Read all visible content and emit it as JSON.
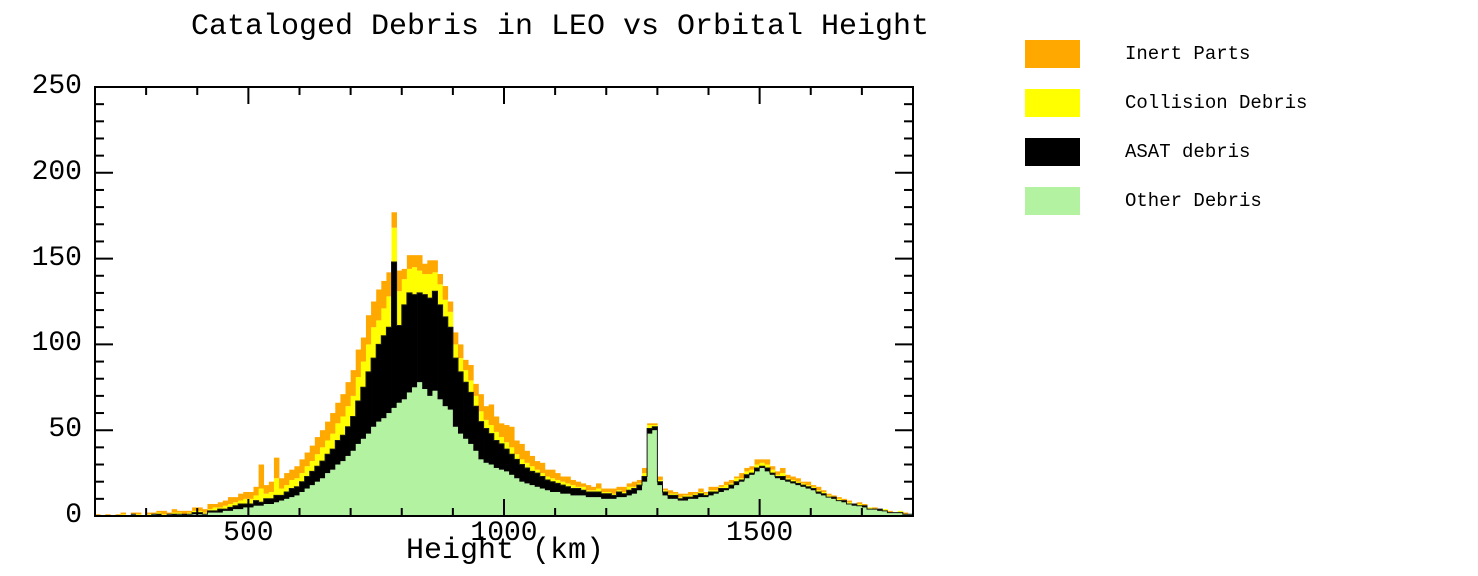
{
  "title": "Cataloged Debris in LEO vs Orbital Height",
  "axes": {
    "x": {
      "label": "Height (km)",
      "min": 200,
      "max": 1800,
      "major_ticks": [
        500,
        1000,
        1500
      ],
      "tick_labels": [
        "500",
        "1000",
        "1500"
      ],
      "minor_tick_step": 100
    },
    "y": {
      "min": 0,
      "max": 250,
      "major_ticks": [
        0,
        50,
        100,
        150,
        200,
        250
      ],
      "tick_labels": [
        "0",
        "50",
        "100",
        "150",
        "200",
        "250"
      ],
      "minor_tick_step": 10
    }
  },
  "legend": {
    "items": [
      {
        "label": "Inert Parts",
        "color": "#FFA800"
      },
      {
        "label": "Collision Debris",
        "color": "#FFFF00"
      },
      {
        "label": "ASAT debris",
        "color": "#000000"
      },
      {
        "label": "Other Debris",
        "color": "#B2F2A0"
      }
    ]
  },
  "chart_data": {
    "type": "bar",
    "stacked": true,
    "title": "Cataloged Debris in LEO vs Orbital Height",
    "xlabel": "Height (km)",
    "ylabel": "",
    "xlim": [
      200,
      1800
    ],
    "ylim": [
      0,
      250
    ],
    "bin_width_km": 10,
    "x_start_km": 200,
    "grid": false,
    "legend_position": "right",
    "stack_order_bottom_to_top": [
      "Other Debris",
      "ASAT debris",
      "Collision Debris",
      "Inert Parts"
    ],
    "series": [
      {
        "name": "Other Debris",
        "color": "#B2F2A0",
        "values": [
          0,
          0,
          0,
          0,
          0,
          0,
          0,
          1,
          0,
          0,
          0,
          1,
          0,
          0,
          1,
          0,
          1,
          0,
          1,
          1,
          1,
          1,
          2,
          2,
          2,
          3,
          3,
          4,
          4,
          5,
          5,
          6,
          6,
          7,
          7,
          8,
          9,
          10,
          11,
          12,
          14,
          16,
          18,
          20,
          22,
          25,
          27,
          30,
          32,
          35,
          38,
          42,
          45,
          48,
          52,
          55,
          57,
          60,
          63,
          66,
          68,
          72,
          75,
          78,
          74,
          70,
          73,
          68,
          64,
          62,
          52,
          48,
          45,
          42,
          38,
          33,
          31,
          30,
          28,
          27,
          26,
          24,
          22,
          20,
          19,
          18,
          17,
          16,
          15,
          14,
          14,
          13,
          13,
          12,
          12,
          12,
          11,
          11,
          11,
          10,
          10,
          10,
          11,
          11,
          12,
          13,
          15,
          20,
          48,
          50,
          18,
          12,
          10,
          10,
          9,
          9,
          10,
          10,
          11,
          11,
          12,
          13,
          14,
          15,
          16,
          18,
          20,
          22,
          24,
          26,
          28,
          26,
          24,
          22,
          21,
          20,
          19,
          18,
          17,
          16,
          15,
          13,
          12,
          11,
          10,
          9,
          8,
          7,
          6,
          6,
          5,
          4,
          4,
          3,
          3,
          2,
          2,
          2,
          1,
          1
        ]
      },
      {
        "name": "ASAT debris",
        "color": "#000000",
        "values": [
          0,
          0,
          0,
          0,
          0,
          0,
          0,
          0,
          0,
          0,
          0,
          0,
          1,
          0,
          0,
          1,
          0,
          1,
          0,
          1,
          1,
          0,
          1,
          1,
          2,
          1,
          2,
          2,
          3,
          2,
          2,
          3,
          2,
          3,
          3,
          4,
          3,
          4,
          5,
          5,
          6,
          7,
          8,
          9,
          10,
          11,
          12,
          14,
          15,
          17,
          20,
          25,
          30,
          36,
          40,
          45,
          48,
          50,
          85,
          45,
          55,
          58,
          54,
          52,
          55,
          57,
          58,
          55,
          52,
          48,
          40,
          36,
          33,
          30,
          26,
          22,
          20,
          18,
          16,
          15,
          13,
          12,
          11,
          10,
          9,
          8,
          8,
          7,
          6,
          6,
          5,
          5,
          4,
          4,
          4,
          3,
          3,
          3,
          3,
          3,
          3,
          2,
          3,
          2,
          3,
          3,
          3,
          3,
          3,
          2,
          2,
          2,
          2,
          2,
          1,
          2,
          1,
          2,
          2,
          1,
          2,
          1,
          2,
          1,
          2,
          2,
          1,
          2,
          1,
          2,
          1,
          2,
          1,
          1,
          2,
          1,
          1,
          1,
          1,
          1,
          1,
          1,
          1,
          0,
          1,
          0,
          1,
          0,
          1,
          0,
          1,
          0,
          0,
          1,
          0,
          0,
          0,
          0,
          0,
          0
        ]
      },
      {
        "name": "Collision Debris",
        "color": "#FFFF00",
        "values": [
          0,
          0,
          0,
          0,
          0,
          1,
          0,
          0,
          1,
          0,
          1,
          0,
          1,
          1,
          0,
          1,
          1,
          0,
          1,
          1,
          1,
          1,
          1,
          2,
          1,
          2,
          2,
          2,
          2,
          3,
          3,
          3,
          8,
          3,
          4,
          10,
          4,
          4,
          5,
          5,
          5,
          6,
          6,
          7,
          8,
          8,
          9,
          10,
          11,
          12,
          12,
          14,
          15,
          16,
          18,
          14,
          16,
          18,
          20,
          20,
          15,
          14,
          16,
          13,
          12,
          14,
          11,
          12,
          10,
          9,
          8,
          8,
          7,
          7,
          6,
          6,
          5,
          5,
          5,
          4,
          4,
          4,
          3,
          3,
          3,
          3,
          2,
          2,
          2,
          2,
          2,
          2,
          2,
          2,
          1,
          2,
          1,
          1,
          2,
          1,
          1,
          1,
          1,
          1,
          2,
          1,
          1,
          2,
          2,
          1,
          1,
          1,
          1,
          1,
          1,
          1,
          1,
          1,
          1,
          1,
          1,
          1,
          1,
          2,
          1,
          2,
          1,
          2,
          2,
          2,
          2,
          2,
          2,
          1,
          2,
          1,
          1,
          1,
          1,
          1,
          1,
          1,
          1,
          1,
          0,
          1,
          0,
          1,
          0,
          1,
          0,
          1,
          0,
          0,
          1,
          0,
          0,
          1,
          0,
          0
        ]
      },
      {
        "name": "Inert Parts",
        "color": "#FFA800",
        "values": [
          1,
          0,
          1,
          0,
          1,
          1,
          0,
          1,
          1,
          0,
          1,
          1,
          1,
          2,
          1,
          2,
          1,
          2,
          1,
          2,
          2,
          2,
          3,
          2,
          3,
          3,
          4,
          3,
          4,
          4,
          4,
          5,
          14,
          5,
          6,
          12,
          6,
          7,
          6,
          7,
          8,
          8,
          9,
          10,
          10,
          11,
          12,
          12,
          13,
          14,
          15,
          16,
          14,
          17,
          15,
          18,
          16,
          14,
          9,
          12,
          6,
          8,
          7,
          9,
          6,
          8,
          7,
          6,
          8,
          6,
          7,
          8,
          6,
          9,
          7,
          10,
          8,
          12,
          9,
          8,
          10,
          12,
          8,
          9,
          7,
          6,
          5,
          6,
          4,
          5,
          4,
          3,
          4,
          3,
          3,
          2,
          3,
          2,
          3,
          2,
          2,
          3,
          2,
          3,
          2,
          3,
          2,
          3,
          1,
          1,
          2,
          1,
          2,
          1,
          2,
          1,
          2,
          1,
          2,
          1,
          2,
          2,
          1,
          2,
          2,
          1,
          3,
          2,
          2,
          3,
          2,
          3,
          2,
          2,
          3,
          2,
          2,
          2,
          1,
          2,
          1,
          2,
          1,
          1,
          1,
          1,
          1,
          1,
          0,
          1,
          1,
          0,
          1,
          0,
          0,
          1,
          0,
          0,
          1,
          0
        ]
      }
    ]
  }
}
